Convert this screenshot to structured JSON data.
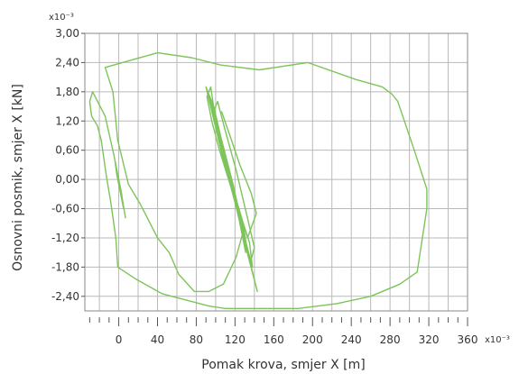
{
  "chart_data": {
    "type": "line",
    "xlabel": "Pomak krova, smjer X [m]",
    "ylabel": "Osnovni posmik, smjer X [kN]",
    "x_multiplier": "x10⁻³",
    "y_multiplier": "x10⁻³",
    "xlim": [
      -35,
      360
    ],
    "ylim": [
      -2.7,
      3.0
    ],
    "x_ticks": [
      0,
      40,
      80,
      120,
      160,
      200,
      240,
      280,
      320,
      360
    ],
    "x_tick_labels": [
      "0",
      "40",
      "80",
      "120",
      "160",
      "200",
      "240",
      "280",
      "320",
      "360"
    ],
    "y_ticks": [
      3.0,
      2.4,
      1.8,
      1.2,
      0.6,
      0.0,
      -0.6,
      -1.2,
      -1.8,
      -2.4
    ],
    "y_tick_labels": [
      "3,00",
      "2,40",
      "1,80",
      "1,20",
      "0,60",
      "0,00",
      "-0,60",
      "-1,20",
      "-1,80",
      "-2,40"
    ],
    "grid": true,
    "line_color": "#7dc45a",
    "series": [
      {
        "values": [
          [
            7,
            -0.8
          ],
          [
            2,
            -0.2
          ],
          [
            -4,
            0.4
          ],
          [
            -2,
            0.1
          ],
          [
            5,
            -0.6
          ],
          [
            3,
            -0.3
          ],
          [
            -5,
            0.5
          ],
          [
            -14,
            1.3
          ],
          [
            -27,
            1.8
          ],
          [
            -30,
            1.6
          ],
          [
            -28,
            1.3
          ],
          [
            -22,
            1.1
          ],
          [
            -18,
            0.8
          ],
          [
            -13,
            0.1
          ],
          [
            -8,
            -0.5
          ],
          [
            -3,
            -1.2
          ],
          [
            -1,
            -1.8
          ],
          [
            18,
            -2.05
          ],
          [
            45,
            -2.35
          ],
          [
            93,
            -2.6
          ],
          [
            110,
            -2.65
          ],
          [
            150,
            -2.65
          ],
          [
            185,
            -2.65
          ],
          [
            225,
            -2.55
          ],
          [
            260,
            -2.4
          ],
          [
            290,
            -2.15
          ],
          [
            308,
            -1.9
          ],
          [
            318,
            -0.6
          ],
          [
            318,
            -0.2
          ],
          [
            305,
            0.6
          ],
          [
            288,
            1.6
          ],
          [
            282,
            1.75
          ],
          [
            272,
            1.9
          ],
          [
            245,
            2.05
          ],
          [
            195,
            2.4
          ],
          [
            145,
            2.25
          ],
          [
            105,
            2.35
          ],
          [
            75,
            2.5
          ],
          [
            40,
            2.6
          ],
          [
            -14,
            2.3
          ],
          [
            -6,
            1.8
          ],
          [
            -1,
            0.8
          ],
          [
            10,
            -0.1
          ],
          [
            22,
            -0.5
          ],
          [
            40,
            -1.2
          ],
          [
            52,
            -1.5
          ],
          [
            62,
            -1.95
          ],
          [
            78,
            -2.3
          ],
          [
            93,
            -2.3
          ],
          [
            108,
            -2.15
          ],
          [
            121,
            -1.6
          ],
          [
            128,
            -1.1
          ],
          [
            143,
            -2.3
          ],
          [
            130,
            -1.3
          ],
          [
            118,
            -0.3
          ],
          [
            104,
            0.6
          ],
          [
            96,
            1.2
          ],
          [
            91,
            1.7
          ],
          [
            95,
            1.9
          ],
          [
            100,
            1.2
          ],
          [
            112,
            0.2
          ],
          [
            124,
            -0.6
          ],
          [
            132,
            -1.4
          ],
          [
            128,
            -1.0
          ],
          [
            118,
            -0.1
          ],
          [
            105,
            0.9
          ],
          [
            98,
            1.5
          ],
          [
            90,
            1.9
          ],
          [
            96,
            1.4
          ],
          [
            108,
            0.4
          ],
          [
            122,
            -0.5
          ],
          [
            135,
            -1.3
          ],
          [
            138,
            -1.8
          ],
          [
            130,
            -1.2
          ],
          [
            119,
            -0.3
          ],
          [
            107,
            0.6
          ],
          [
            99,
            1.3
          ],
          [
            94,
            1.7
          ],
          [
            101,
            1.1
          ],
          [
            113,
            0.1
          ],
          [
            125,
            -0.8
          ],
          [
            134,
            -1.6
          ],
          [
            129,
            -1.0
          ],
          [
            116,
            0.0
          ],
          [
            104,
            0.9
          ],
          [
            97,
            1.5
          ],
          [
            92,
            1.8
          ],
          [
            99,
            1.2
          ],
          [
            111,
            0.2
          ],
          [
            123,
            -0.7
          ],
          [
            131,
            -1.5
          ],
          [
            126,
            -0.9
          ],
          [
            114,
            0.1
          ],
          [
            103,
            1.0
          ],
          [
            96,
            1.6
          ],
          [
            101,
            1.0
          ],
          [
            115,
            -0.1
          ],
          [
            127,
            -1.0
          ],
          [
            136,
            -1.7
          ],
          [
            140,
            -1.4
          ],
          [
            133,
            -0.8
          ],
          [
            121,
            0.2
          ],
          [
            110,
            1.0
          ],
          [
            102,
            1.6
          ],
          [
            98,
            1.4
          ],
          [
            109,
            0.5
          ],
          [
            121,
            -0.4
          ],
          [
            133,
            -1.2
          ],
          [
            142,
            -0.7
          ],
          [
            137,
            -0.3
          ],
          [
            125,
            0.3
          ],
          [
            113,
            1.0
          ],
          [
            106,
            1.4
          ]
        ]
      }
    ]
  }
}
